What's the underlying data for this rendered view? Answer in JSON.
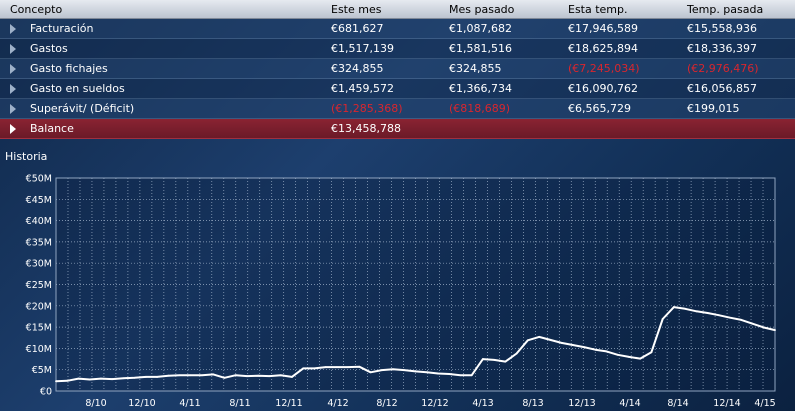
{
  "table": {
    "headers": [
      "Concepto",
      "Este mes",
      "Mes pasado",
      "Esta temp.",
      "Temp. pasada"
    ],
    "rows": [
      {
        "label": "Facturación",
        "values": [
          "€681,627",
          "€1,087,682",
          "€17,946,589",
          "€15,558,936"
        ],
        "negative": [
          false,
          false,
          false,
          false
        ]
      },
      {
        "label": "Gastos",
        "values": [
          "€1,517,139",
          "€1,581,516",
          "€18,625,894",
          "€18,336,397"
        ],
        "negative": [
          false,
          false,
          false,
          false
        ]
      },
      {
        "label": "Gasto fichajes",
        "values": [
          "€324,855",
          "€324,855",
          "(€7,245,034)",
          "(€2,976,476)"
        ],
        "negative": [
          false,
          false,
          true,
          true
        ]
      },
      {
        "label": "Gasto en sueldos",
        "values": [
          "€1,459,572",
          "€1,366,734",
          "€16,090,762",
          "€16,056,857"
        ],
        "negative": [
          false,
          false,
          false,
          false
        ]
      },
      {
        "label": "Superávit/ (Déficit)",
        "values": [
          "(€1,285,368)",
          "(€818,689)",
          "€6,565,729",
          "€199,015"
        ],
        "negative": [
          true,
          true,
          false,
          false
        ]
      }
    ],
    "balance": {
      "label": "Balance",
      "value": "€13,458,788"
    }
  },
  "history": {
    "title": "Historia"
  },
  "colors": {
    "negative": "#d8262e",
    "balance_row": "#7a1e2c",
    "line": "#ffffff"
  },
  "chart_data": {
    "type": "line",
    "ylim": [
      0,
      50
    ],
    "y_ticks": [
      "€0",
      "€5M",
      "€10M",
      "€15M",
      "€20M",
      "€25M",
      "€30M",
      "€35M",
      "€40M",
      "€45M",
      "€50M"
    ],
    "x_ticks": [
      "8/10",
      "12/10",
      "4/11",
      "8/11",
      "12/11",
      "4/12",
      "8/12",
      "12/12",
      "4/13",
      "8/13",
      "12/13",
      "4/14",
      "8/14",
      "12/14",
      "4/15"
    ],
    "grid": true,
    "series": [
      {
        "values": [
          2.3,
          2.4,
          2.9,
          2.7,
          2.9,
          2.8,
          3.0,
          3.1,
          3.3,
          3.3,
          3.6,
          3.7,
          3.7,
          3.7,
          3.9,
          3.1,
          3.7,
          3.5,
          3.6,
          3.5,
          3.7,
          3.3,
          5.3,
          5.3,
          5.6,
          5.6,
          5.6,
          5.7,
          4.4,
          4.9,
          5.1,
          4.9,
          4.6,
          4.4,
          4.1,
          4.0,
          3.7,
          3.7,
          7.5,
          7.3,
          6.9,
          8.8,
          11.9,
          12.7,
          12.0,
          11.3,
          10.8,
          10.3,
          9.7,
          9.3,
          8.5,
          8.0,
          7.6,
          9.1,
          16.9,
          19.7,
          19.3,
          18.7,
          18.3,
          17.8,
          17.2,
          16.7,
          15.8,
          14.9,
          14.3
        ]
      }
    ]
  }
}
